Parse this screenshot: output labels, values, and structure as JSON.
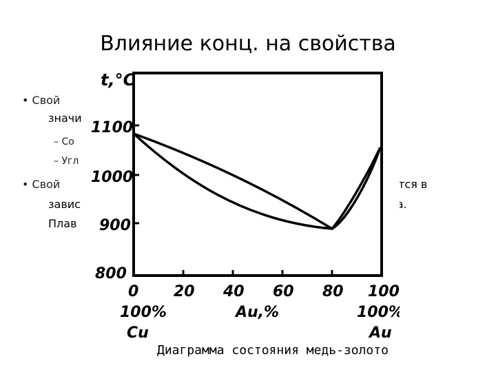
{
  "slide": {
    "title": "Влияние конц. на свойства",
    "bullet1_line1": "Свой",
    "bullet1_line2": "значи",
    "sub1": "Со",
    "sub2": "Угл",
    "bullet2_line1": "Свой",
    "bullet2_line1_right": "яются в",
    "bullet2_line2": "завис",
    "bullet2_line2_right": "тва.",
    "bullet2_line3": "Плав",
    "bullet_symbol": "•",
    "dash_symbol": "–"
  },
  "diagram": {
    "y_axis_label": "t,°C",
    "x_axis_label": "Au,%",
    "y_ticks": [
      "1100",
      "1000",
      "900",
      "800"
    ],
    "x_ticks": [
      "0",
      "20",
      "40",
      "60",
      "80",
      "100"
    ],
    "left_percent": "100%",
    "right_percent": "100%",
    "left_element": "Cu",
    "right_element": "Au",
    "caption": "Диаграмма состояния медь-золото"
  }
}
